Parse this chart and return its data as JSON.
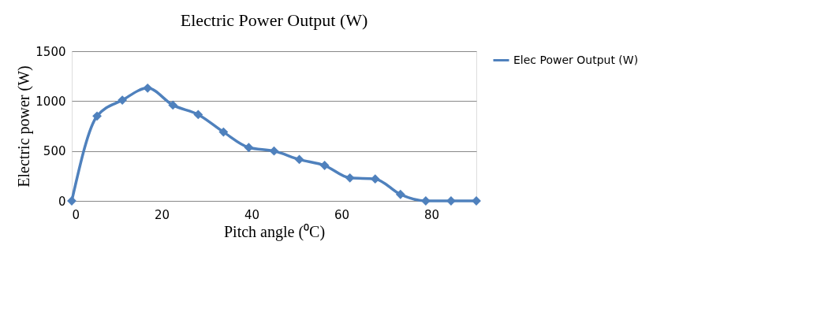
{
  "chart_data": {
    "type": "line",
    "title": "Electric Power Output (W)",
    "xlabel": "Pitch angle (⁰C)",
    "ylabel": "Electric power (W)",
    "x": [
      0,
      5.625,
      11.25,
      16.875,
      22.5,
      28.125,
      33.75,
      39.375,
      45,
      50.625,
      56.25,
      61.875,
      67.5,
      73.125,
      78.75,
      84.375,
      90
    ],
    "series": [
      {
        "name": "Elec Power Output (W)",
        "color": "#4f81bd",
        "values": [
          0,
          850,
          1010,
          1130,
          960,
          865,
          690,
          535,
          500,
          415,
          355,
          230,
          220,
          65,
          0,
          0,
          0
        ]
      }
    ],
    "xlim": [
      0,
      90
    ],
    "xticks": [
      0,
      20,
      40,
      60,
      80
    ],
    "ylim": [
      0,
      1500
    ],
    "yticks": [
      0,
      500,
      1000,
      1500
    ],
    "grid": "y",
    "legend": "right",
    "marker": "diamond",
    "line_style": "solid"
  }
}
